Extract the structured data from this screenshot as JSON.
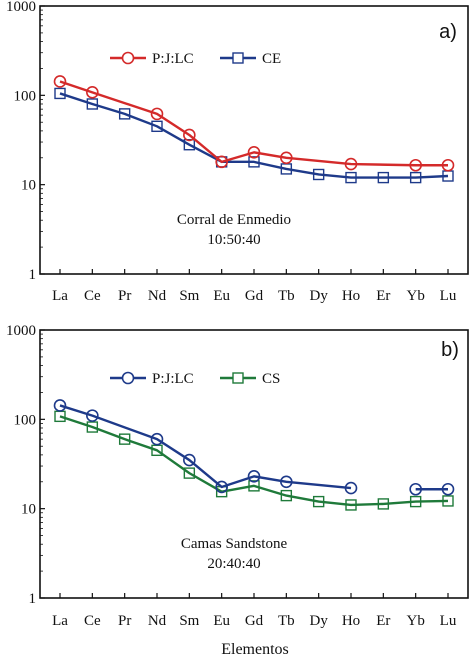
{
  "chart_data": [
    {
      "type": "line",
      "panel_label": "a)",
      "y_scale": "log",
      "ylim": [
        1,
        1000
      ],
      "y_ticks": [
        "1",
        "10",
        "100",
        "1000"
      ],
      "categories": [
        "La",
        "Ce",
        "Pr",
        "Nd",
        "Sm",
        "Eu",
        "Gd",
        "Tb",
        "Dy",
        "Ho",
        "Er",
        "Yb",
        "Lu"
      ],
      "annotation": [
        "Corral de Enmedio",
        "10:50:40"
      ],
      "legend_position": "top-left",
      "series": [
        {
          "name": "P:J:LC",
          "color": "#d42a2a",
          "marker": "circle",
          "values": [
            143,
            108,
            null,
            62,
            36,
            18,
            23,
            20,
            null,
            17,
            null,
            16.5,
            16.5
          ]
        },
        {
          "name": "CE",
          "color": "#1e3a8a",
          "marker": "square",
          "values": [
            105,
            80,
            62,
            45,
            28,
            18,
            18,
            15,
            13,
            12,
            12,
            12,
            12.5
          ]
        }
      ]
    },
    {
      "type": "line",
      "panel_label": "b)",
      "y_scale": "log",
      "ylim": [
        1,
        1000
      ],
      "y_ticks": [
        "1",
        "10",
        "100",
        "1000"
      ],
      "categories": [
        "La",
        "Ce",
        "Pr",
        "Nd",
        "Sm",
        "Eu",
        "Gd",
        "Tb",
        "Dy",
        "Ho",
        "Er",
        "Yb",
        "Lu"
      ],
      "xlabel": "Elementos",
      "annotation": [
        "Camas Sandstone",
        "20:40:40"
      ],
      "legend_position": "top-left",
      "series": [
        {
          "name": "P:J:LC",
          "color": "#1e3a8a",
          "marker": "circle",
          "values": [
            143,
            110,
            null,
            60,
            35,
            17.5,
            23,
            20,
            null,
            17,
            null,
            16.5,
            16.5
          ]
        },
        {
          "name": "CS",
          "color": "#1f7a3a",
          "marker": "square",
          "values": [
            108,
            82,
            60,
            45,
            25,
            15.5,
            18,
            14,
            12,
            11,
            11.3,
            12,
            12.2
          ]
        }
      ]
    }
  ]
}
